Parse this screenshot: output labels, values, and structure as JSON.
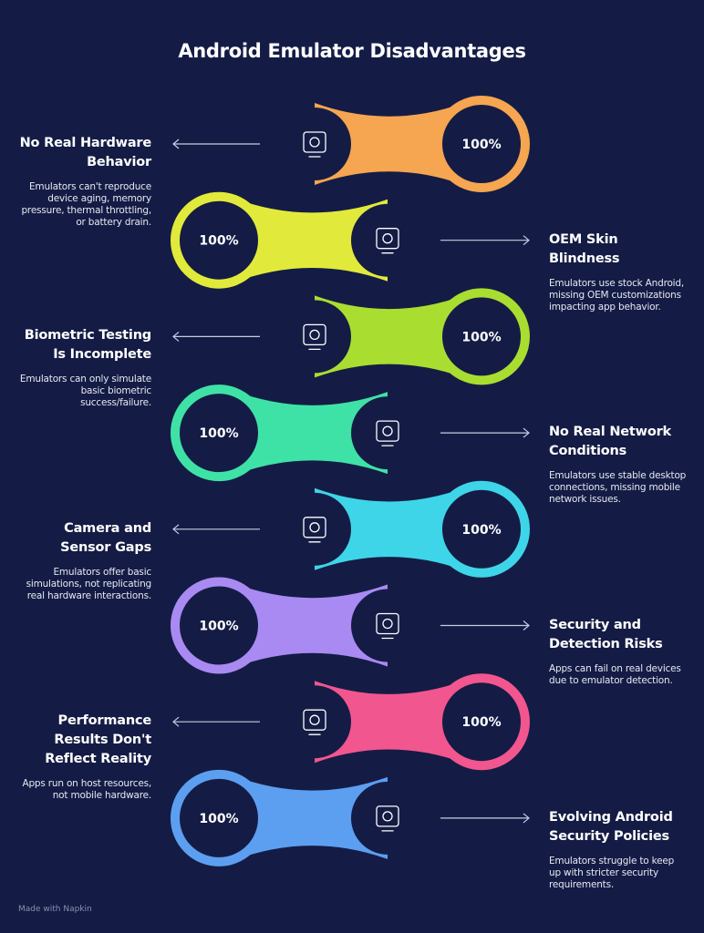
{
  "title": "Android Emulator Disadvantages",
  "items": [
    {
      "heading": "No Real Hardware Behavior",
      "description": "Emulators can't reproduce device aging, memory pressure, thermal throttling, or battery drain.",
      "percent": "100%",
      "color": "#f6a550"
    },
    {
      "heading": "OEM Skin Blindness",
      "description": "Emulators use stock Android, missing OEM customizations impacting app behavior.",
      "percent": "100%",
      "color": "#e1ea3a"
    },
    {
      "heading": "Biometric Testing Is Incomplete",
      "description": "Emulators can only simulate basic biometric success/failure.",
      "percent": "100%",
      "color": "#a9de30"
    },
    {
      "heading": "No Real Network Conditions",
      "description": "Emulators use stable desktop connections, missing mobile network issues.",
      "percent": "100%",
      "color": "#3fe2a6"
    },
    {
      "heading": "Camera and Sensor Gaps",
      "description": "Emulators offer basic simulations, not replicating real hardware interactions.",
      "percent": "100%",
      "color": "#3fd5e8"
    },
    {
      "heading": "Security and Detection Risks",
      "description": "Apps can fail on real devices due to emulator detection.",
      "percent": "100%",
      "color": "#a98af2"
    },
    {
      "heading": "Performance Results Don't Reflect Reality",
      "description": "Apps run on host resources, not mobile hardware.",
      "percent": "100%",
      "color": "#f2568f"
    },
    {
      "heading": "Evolving Android Security Policies",
      "description": "Emulators struggle to keep up with stricter security requirements.",
      "percent": "100%",
      "color": "#5c9ff0"
    }
  ],
  "footer": "Made with Napkin"
}
